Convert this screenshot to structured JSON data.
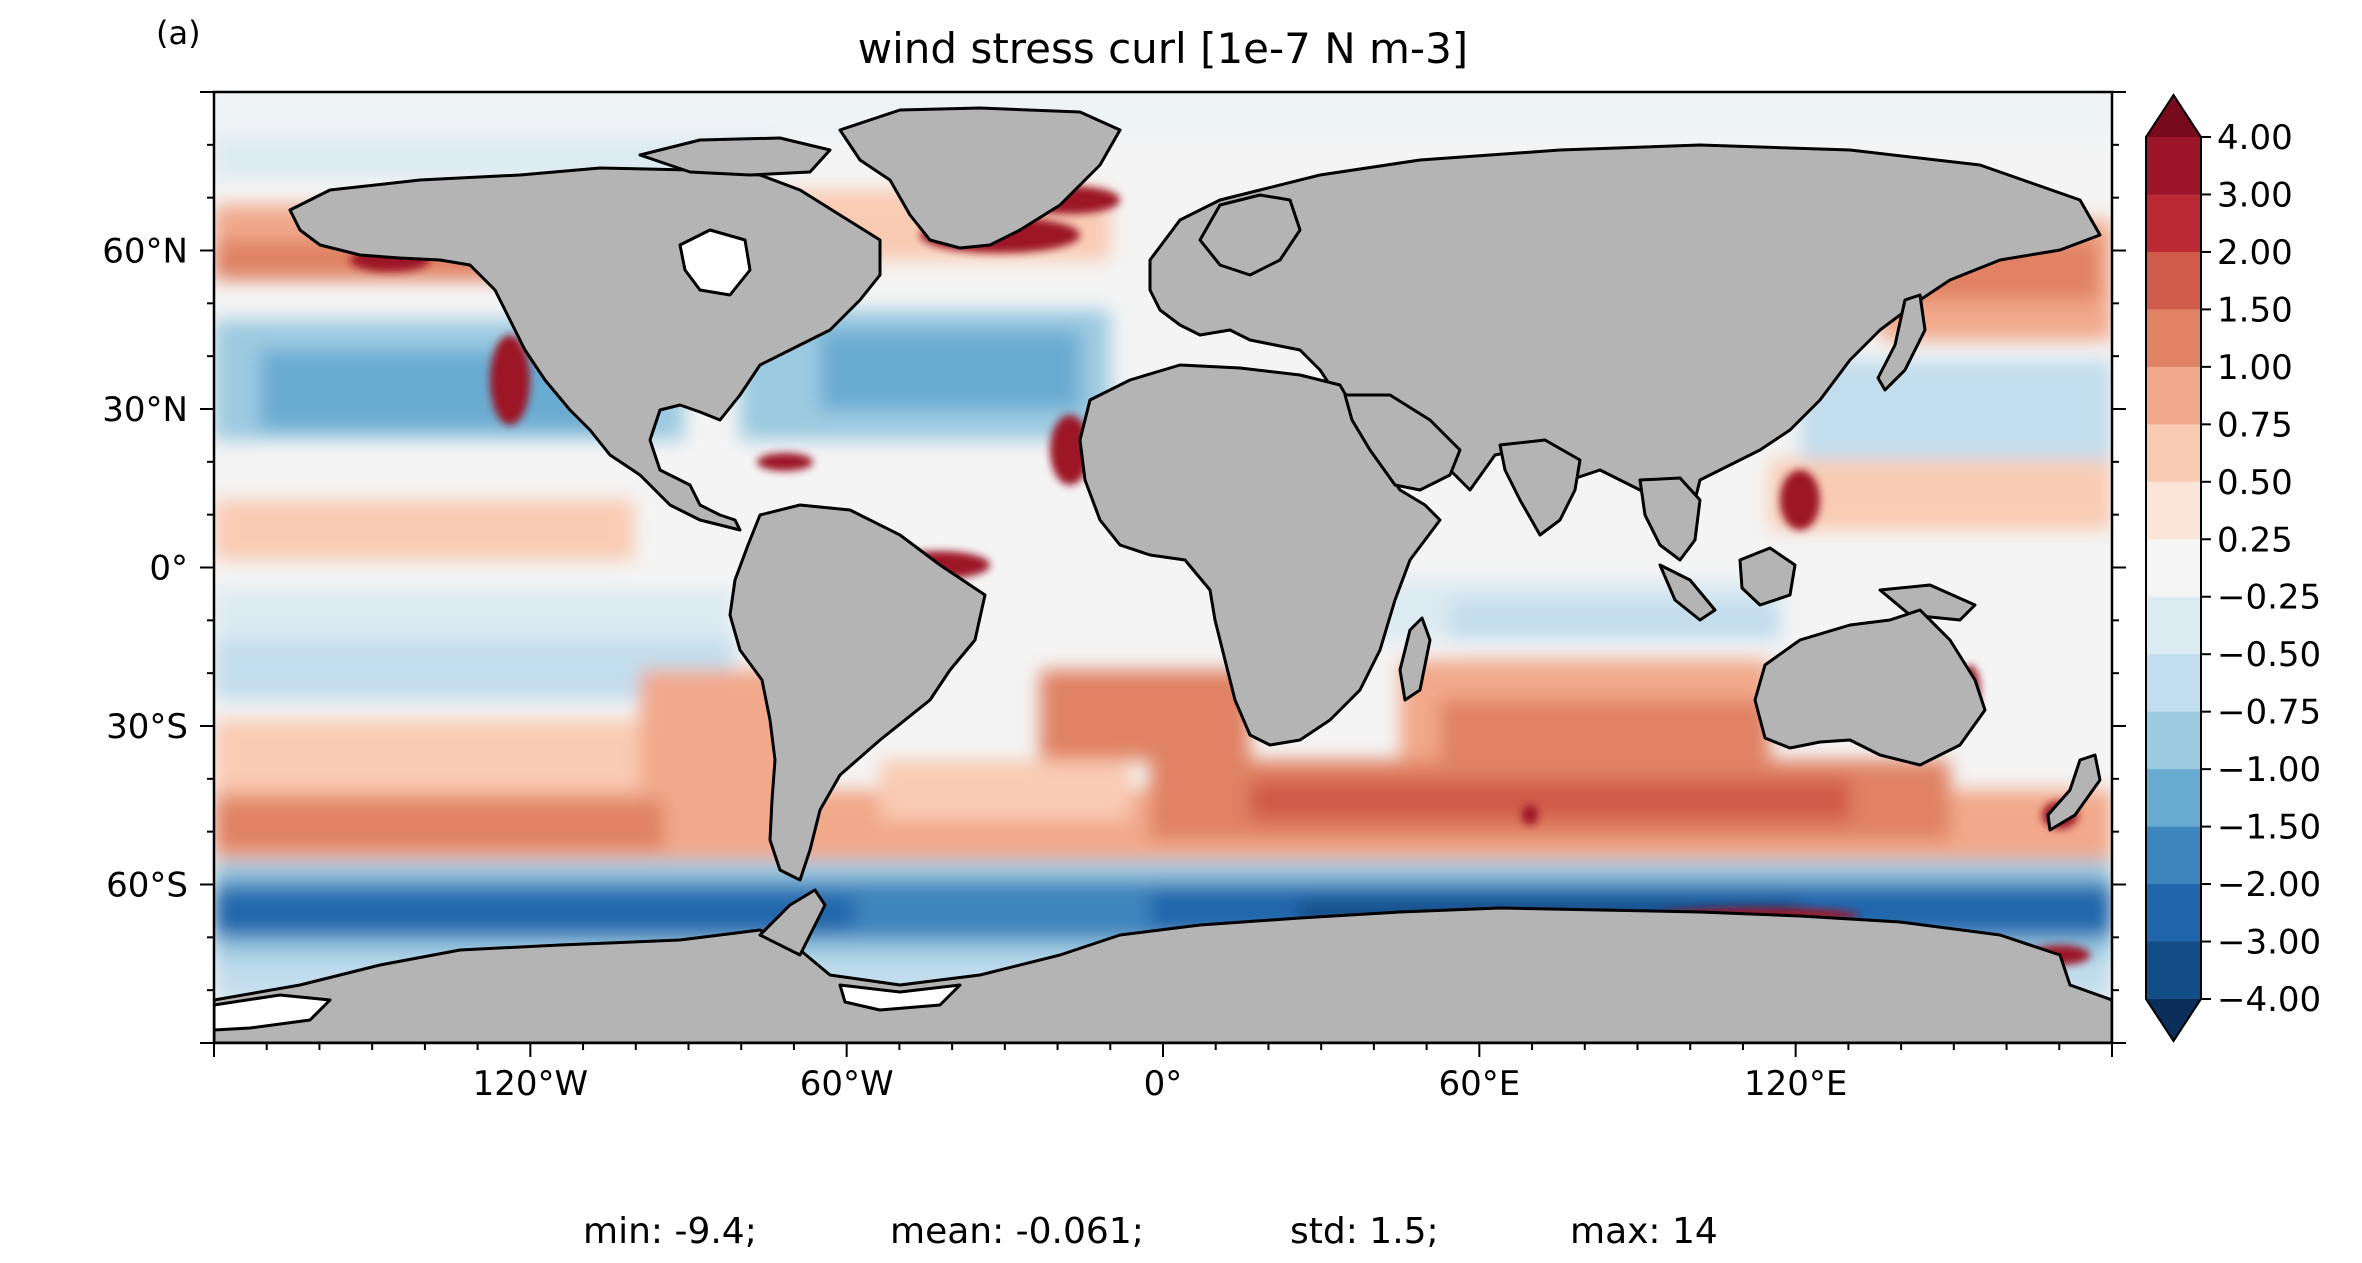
{
  "panel_label": "(a)",
  "chart_data": {
    "type": "heatmap",
    "title": "wind stress curl [1e-7 N m-3]",
    "x_ticks": [
      {
        "value": -120,
        "label": "120°W"
      },
      {
        "value": -60,
        "label": "60°W"
      },
      {
        "value": 0,
        "label": "0°"
      },
      {
        "value": 60,
        "label": "60°E"
      },
      {
        "value": 120,
        "label": "120°E"
      }
    ],
    "y_ticks": [
      {
        "value": 60,
        "label": "60°N"
      },
      {
        "value": 30,
        "label": "30°N"
      },
      {
        "value": 0,
        "label": "0°"
      },
      {
        "value": -30,
        "label": "30°S"
      },
      {
        "value": -60,
        "label": "60°S"
      }
    ],
    "xlim": [
      -180,
      180
    ],
    "ylim": [
      -90,
      90
    ],
    "colorbar": {
      "extend": "both",
      "levels": [
        4.0,
        3.0,
        2.0,
        1.5,
        1.0,
        0.75,
        0.5,
        0.25,
        -0.25,
        -0.5,
        -0.75,
        -1.0,
        -1.5,
        -2.0,
        -3.0,
        -4.0
      ],
      "labels": [
        "4.00",
        "3.00",
        "2.00",
        "1.50",
        "1.00",
        "0.75",
        "0.50",
        "0.25",
        "−0.25",
        "−0.50",
        "−0.75",
        "−1.00",
        "−1.50",
        "−2.00",
        "−3.00",
        "−4.00"
      ],
      "colors": [
        "#780a1e",
        "#9c1428",
        "#bb2a34",
        "#d05a4a",
        "#e08264",
        "#f2a88a",
        "#f9cbb3",
        "#fbe5d8",
        "#f5f5f5",
        "#dceaf2",
        "#c2dded",
        "#9ccae1",
        "#6aabd1",
        "#3c85bd",
        "#2166ac",
        "#124d88",
        "#0b2f5a"
      ]
    },
    "stats": {
      "min": "min: -9.4;",
      "mean": "mean: -0.061;",
      "std": "std: 1.5;",
      "max": "max: 14"
    },
    "colors": {
      "land": "#b4b4b4",
      "sea_ice": "#ffffff",
      "coast": "#000000"
    }
  }
}
